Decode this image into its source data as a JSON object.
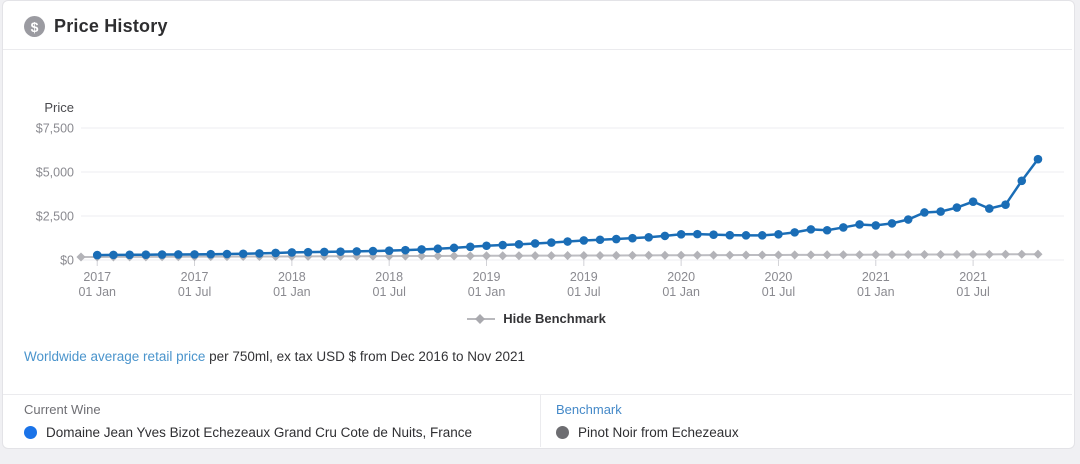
{
  "header": {
    "title": "Price History",
    "icon": "dollar-circle-icon"
  },
  "chart_data": {
    "type": "line",
    "title": "Price History",
    "ylabel": "Price",
    "ylim": [
      0,
      7500
    ],
    "y_tick_values": [
      0,
      2500,
      5000,
      7500
    ],
    "y_tick_labels": [
      "$0",
      "$2,500",
      "$5,000",
      "$7,500"
    ],
    "x_range": "Dec 2016 to Nov 2021",
    "x_interval": "monthly",
    "x_ticks": [
      {
        "year": "2017",
        "day": "01 Jan"
      },
      {
        "year": "2017",
        "day": "01 Jul"
      },
      {
        "year": "2018",
        "day": "01 Jan"
      },
      {
        "year": "2018",
        "day": "01 Jul"
      },
      {
        "year": "2019",
        "day": "01 Jan"
      },
      {
        "year": "2019",
        "day": "01 Jul"
      },
      {
        "year": "2020",
        "day": "01 Jan"
      },
      {
        "year": "2020",
        "day": "01 Jul"
      },
      {
        "year": "2021",
        "day": "01 Jan"
      },
      {
        "year": "2021",
        "day": "01 Jul"
      }
    ],
    "grid": true,
    "legend": {
      "label": "Hide Benchmark",
      "position": "bottom-center"
    },
    "series": [
      {
        "name": "Pinot Noir from Echezeaux (benchmark)",
        "marker": "diamond",
        "color": "#bdbdc2",
        "marker_color": "#b3b3b8",
        "line_width": 2,
        "start_month": "Dec 2016",
        "start_index": 0,
        "values": [
          170,
          173,
          175,
          178,
          181,
          184,
          186,
          189,
          192,
          194,
          197,
          200,
          202,
          205,
          208,
          211,
          213,
          216,
          219,
          221,
          224,
          227,
          229,
          232,
          235,
          238,
          240,
          243,
          246,
          248,
          251,
          254,
          256,
          259,
          262,
          265,
          267,
          270,
          273,
          275,
          278,
          281,
          283,
          286,
          289,
          292,
          294,
          297,
          300,
          302,
          305,
          308,
          310,
          313,
          316,
          319,
          321,
          324,
          327,
          329
        ]
      },
      {
        "name": "Domaine Jean Yves Bizot Echezeaux Grand Cru Cote de Nuits, France",
        "marker": "circle",
        "color": "#1a6db6",
        "marker_color": "#1a6db6",
        "line_width": 2.5,
        "start_month": "Jan 2017",
        "start_index": 1,
        "values": [
          280,
          290,
          295,
          300,
          310,
          315,
          320,
          330,
          340,
          355,
          375,
          400,
          430,
          445,
          460,
          475,
          490,
          510,
          530,
          560,
          600,
          640,
          690,
          750,
          810,
          850,
          890,
          940,
          990,
          1050,
          1110,
          1150,
          1190,
          1240,
          1290,
          1370,
          1460,
          1470,
          1440,
          1410,
          1400,
          1400,
          1460,
          1570,
          1740,
          1690,
          1850,
          2020,
          1965,
          2080,
          2300,
          2700,
          2750,
          2980,
          3315,
          2920,
          3145,
          4500,
          5730
        ]
      }
    ]
  },
  "caption": {
    "link_text": "Worldwide average retail price",
    "rest_text": " per 750ml, ex tax USD $ from Dec 2016 to Nov 2021"
  },
  "footer": {
    "current_wine": {
      "label": "Current Wine",
      "name": "Domaine Jean Yves Bizot Echezeaux Grand Cru Cote de Nuits, France",
      "dot_color": "#1a73e8"
    },
    "benchmark": {
      "label": "Benchmark",
      "name": "Pinot Noir from Echezeaux",
      "dot_color": "#6d6d71"
    }
  }
}
